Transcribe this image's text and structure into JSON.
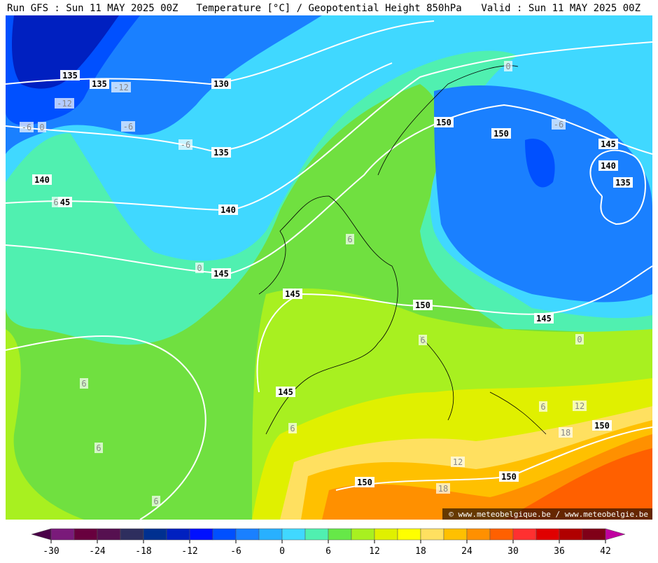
{
  "header": {
    "left": "Run GFS : Sun 11 MAY 2025 00Z",
    "center": "Temperature [°C] / Geopotential Height 850hPa",
    "right": "Valid : Sun 11 MAY 2025 00Z"
  },
  "contour_labels": [
    "135",
    "135",
    "-12",
    "130",
    "-12",
    "-6",
    "0",
    "-6",
    "-6",
    "135",
    "140",
    "6",
    "45",
    "140",
    "0",
    "145",
    "150",
    "150",
    "-6",
    "145",
    "140",
    "135",
    "0",
    "6",
    "145",
    "150",
    "145",
    "0",
    "6",
    "6",
    "145",
    "6",
    "6",
    "6",
    "6",
    "12",
    "150",
    "18",
    "12",
    "150",
    "150",
    "18"
  ],
  "watermark": "© www.meteobelgique.be / www.meteobelgie.be",
  "colorbar": {
    "ticks": [
      -30,
      -24,
      -18,
      -12,
      -6,
      0,
      6,
      12,
      18,
      24,
      30,
      36,
      42
    ],
    "colors": [
      "#4a0048",
      "#7a1a7a",
      "#68003e",
      "#561050",
      "#2e2e5e",
      "#003090",
      "#0020c0",
      "#0010ff",
      "#0050ff",
      "#1a80ff",
      "#28b0ff",
      "#40d8ff",
      "#50f0b0",
      "#66e848",
      "#a8f020",
      "#e0f000",
      "#ffff00",
      "#ffe060",
      "#ffc000",
      "#ff9000",
      "#ff6000",
      "#ff3030",
      "#e00000",
      "#b00000",
      "#800018",
      "#c000a0"
    ]
  }
}
